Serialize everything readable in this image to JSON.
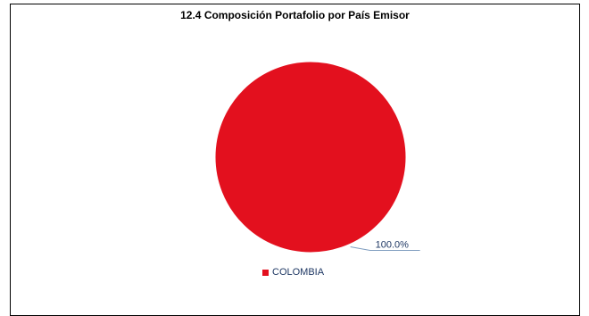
{
  "chart_data": {
    "type": "pie",
    "title": "12.4 Composición Portafolio por País Emisor",
    "categories": [
      "COLOMBIA"
    ],
    "values": [
      100.0
    ],
    "data_labels": [
      "100.0%"
    ],
    "colors": [
      "#e3101e"
    ],
    "legend_position": "bottom",
    "label_color": "#1f3864",
    "leader_line_color": "#7f9dbf"
  }
}
